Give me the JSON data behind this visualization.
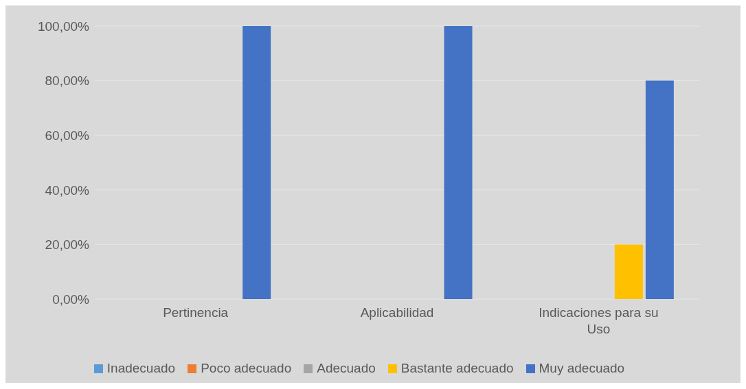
{
  "chart_data": {
    "type": "bar",
    "categories": [
      "Pertinencia",
      "Aplicabilidad",
      "Indicaciones para su Uso"
    ],
    "series": [
      {
        "name": "Inadecuado",
        "color": "#5b9bd5",
        "values": [
          0,
          0,
          0
        ]
      },
      {
        "name": "Poco adecuado",
        "color": "#ed7d31",
        "values": [
          0,
          0,
          0
        ]
      },
      {
        "name": "Adecuado",
        "color": "#a5a5a5",
        "values": [
          0,
          0,
          0
        ]
      },
      {
        "name": "Bastante adecuado",
        "color": "#ffc000",
        "values": [
          0,
          0,
          20
        ]
      },
      {
        "name": "Muy adecuado",
        "color": "#4472c4",
        "values": [
          100,
          100,
          80
        ]
      }
    ],
    "ylim": [
      0,
      100
    ],
    "yticks": [
      {
        "value": 0,
        "label": "0,00%"
      },
      {
        "value": 20,
        "label": "20,00%"
      },
      {
        "value": 40,
        "label": "40,00%"
      },
      {
        "value": 60,
        "label": "60,00%"
      },
      {
        "value": 80,
        "label": "80,00%"
      },
      {
        "value": 100,
        "label": "100,00%"
      }
    ],
    "grid": "y",
    "legend": "bottom"
  }
}
